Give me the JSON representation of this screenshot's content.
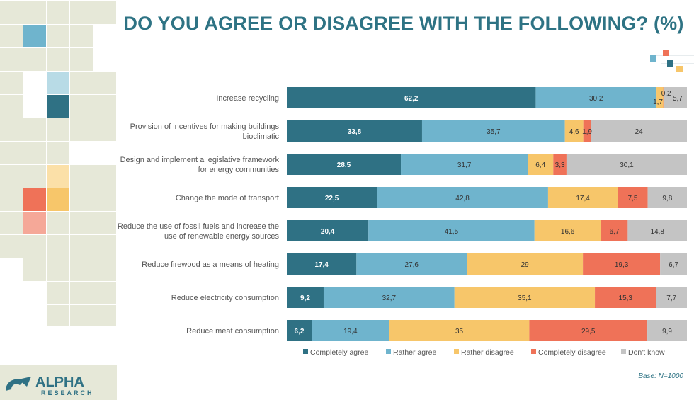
{
  "title": "DO YOU AGREE OR DISAGREE WITH THE FOLLOWING? (%)",
  "base_note": "Base: N=1000",
  "logo": {
    "name": "ALPHA",
    "sub": "RESEARCH"
  },
  "colors": {
    "completely_agree": "#2f7184",
    "rather_agree": "#6fb4cd",
    "rather_disagree": "#f7c66a",
    "completely_disagree": "#ef7258",
    "dont_know": "#c4c4c4",
    "title": "#2e7384",
    "mosaic": "#e6e8d8"
  },
  "chart_data": {
    "type": "bar",
    "orientation": "horizontal",
    "stacked": true,
    "title": "DO YOU AGREE OR DISAGREE WITH THE FOLLOWING? (%)",
    "xlim": [
      0,
      100
    ],
    "legend": "bottom",
    "categories": [
      "Increase recycling",
      "Provision of incentives for making buildings\nbioclimatic",
      "Design and implement a legislative framework\nfor energy communities",
      "Change the mode of transport",
      "Reduce the use of fossil fuels and increase the\nuse of renewable energy sources",
      "Reduce firewood as a means of heating",
      "Reduce electricity consumption",
      "Reduce meat consumption"
    ],
    "series": [
      {
        "name": "Completely agree",
        "values": [
          62.2,
          33.8,
          28.5,
          22.5,
          20.4,
          17.4,
          9.2,
          6.2
        ],
        "labels": [
          "62,2",
          "33,8",
          "28,5",
          "22,5",
          "20,4",
          "17,4",
          "9,2",
          "6,2"
        ]
      },
      {
        "name": "Rather agree",
        "values": [
          30.2,
          35.7,
          31.7,
          42.8,
          41.5,
          27.6,
          32.7,
          19.4
        ],
        "labels": [
          "30,2",
          "35,7",
          "31,7",
          "42,8",
          "41,5",
          "27,6",
          "32,7",
          "19,4"
        ]
      },
      {
        "name": "Rather disagree",
        "values": [
          1.7,
          4.6,
          6.4,
          17.4,
          16.6,
          29,
          35.1,
          35
        ],
        "labels": [
          "1,7",
          "4,6",
          "6,4",
          "17,4",
          "16,6",
          "29",
          "35,1",
          "35"
        ]
      },
      {
        "name": "Completely disagree",
        "values": [
          0.2,
          1.9,
          3.3,
          7.5,
          6.7,
          19.3,
          15.3,
          29.5
        ],
        "labels": [
          "0,2",
          "1,9",
          "3,3",
          "7,5",
          "6,7",
          "19,3",
          "15,3",
          "29,5"
        ]
      },
      {
        "name": "Don't know",
        "values": [
          5.7,
          24,
          30.1,
          9.8,
          14.8,
          6.7,
          7.7,
          9.9
        ],
        "labels": [
          "5,7",
          "24",
          "30,1",
          "9,8",
          "14,8",
          "6,7",
          "7,7",
          "9,9"
        ]
      }
    ]
  }
}
